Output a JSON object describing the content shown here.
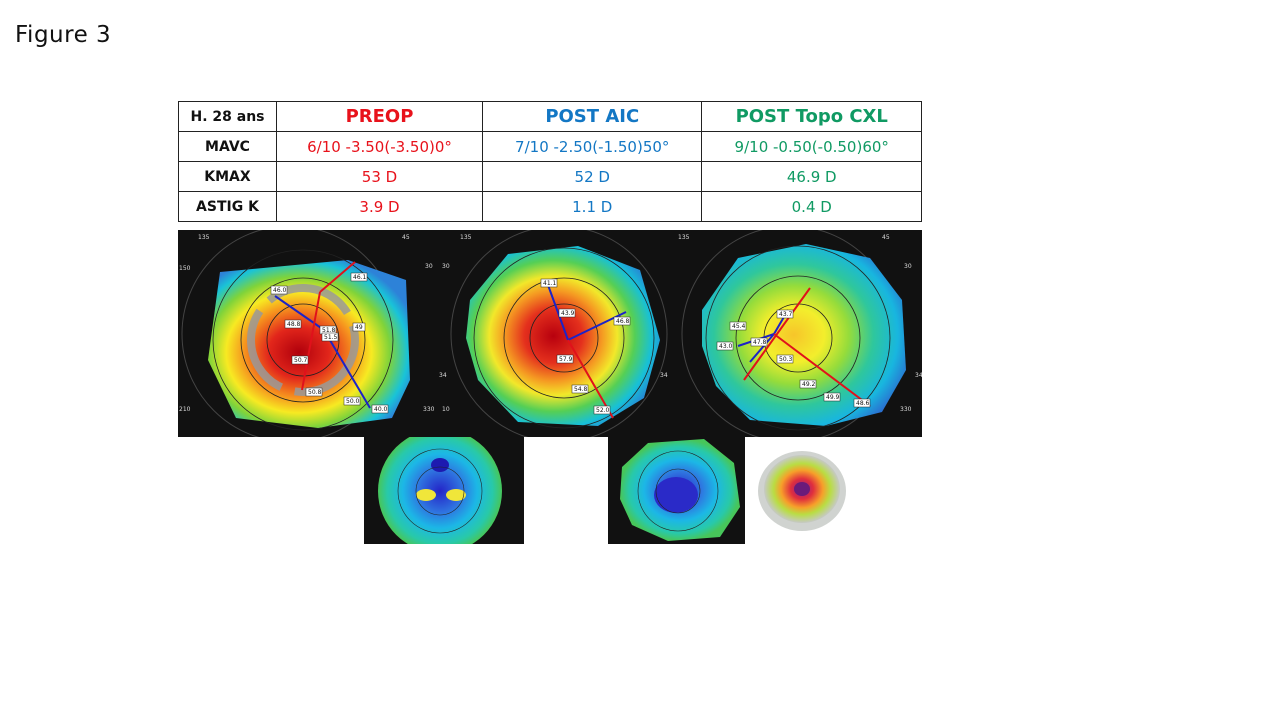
{
  "figure_title": "Figure  3",
  "table": {
    "corner": "H. 28 ans",
    "columns": [
      "PREOP",
      "POST AIC",
      "POST Topo CXL"
    ],
    "rows": [
      {
        "label": "MAVC",
        "values": [
          "6/10   -3.50(-3.50)0°",
          "7/10 -2.50(-1.50)50°",
          "9/10   -0.50(-0.50)60°"
        ]
      },
      {
        "label": "KMAX",
        "values": [
          "53 D",
          "52 D",
          "46.9 D"
        ]
      },
      {
        "label": "ASTIG K",
        "values": [
          "3.9 D",
          "1.1 D",
          "0.4 D"
        ]
      }
    ],
    "colors": {
      "preop": "#e8121b",
      "post_aic": "#1377c4",
      "post_cxl": "#109a63"
    }
  },
  "maps": {
    "preop": {
      "labels": [
        "46.1",
        "46.0",
        "48.8",
        "51.8",
        "51.5",
        "49",
        "50.7",
        "50.8",
        "50.0",
        "40.0"
      ],
      "degrees": [
        "135",
        "45",
        "150",
        "30",
        "210",
        "330",
        "34"
      ]
    },
    "post_aic": {
      "labels": [
        "41.1",
        "43.9",
        "46.8",
        "57.9",
        "54.8",
        "52.0"
      ],
      "degrees": [
        "135",
        "30",
        "10",
        "34"
      ]
    },
    "post_cxl": {
      "labels": [
        "43.7",
        "45.4",
        "47.8",
        "43.0",
        "50.3",
        "49.2",
        "49.9",
        "48.6"
      ],
      "degrees": [
        "135",
        "45",
        "30",
        "34",
        "330"
      ]
    }
  }
}
